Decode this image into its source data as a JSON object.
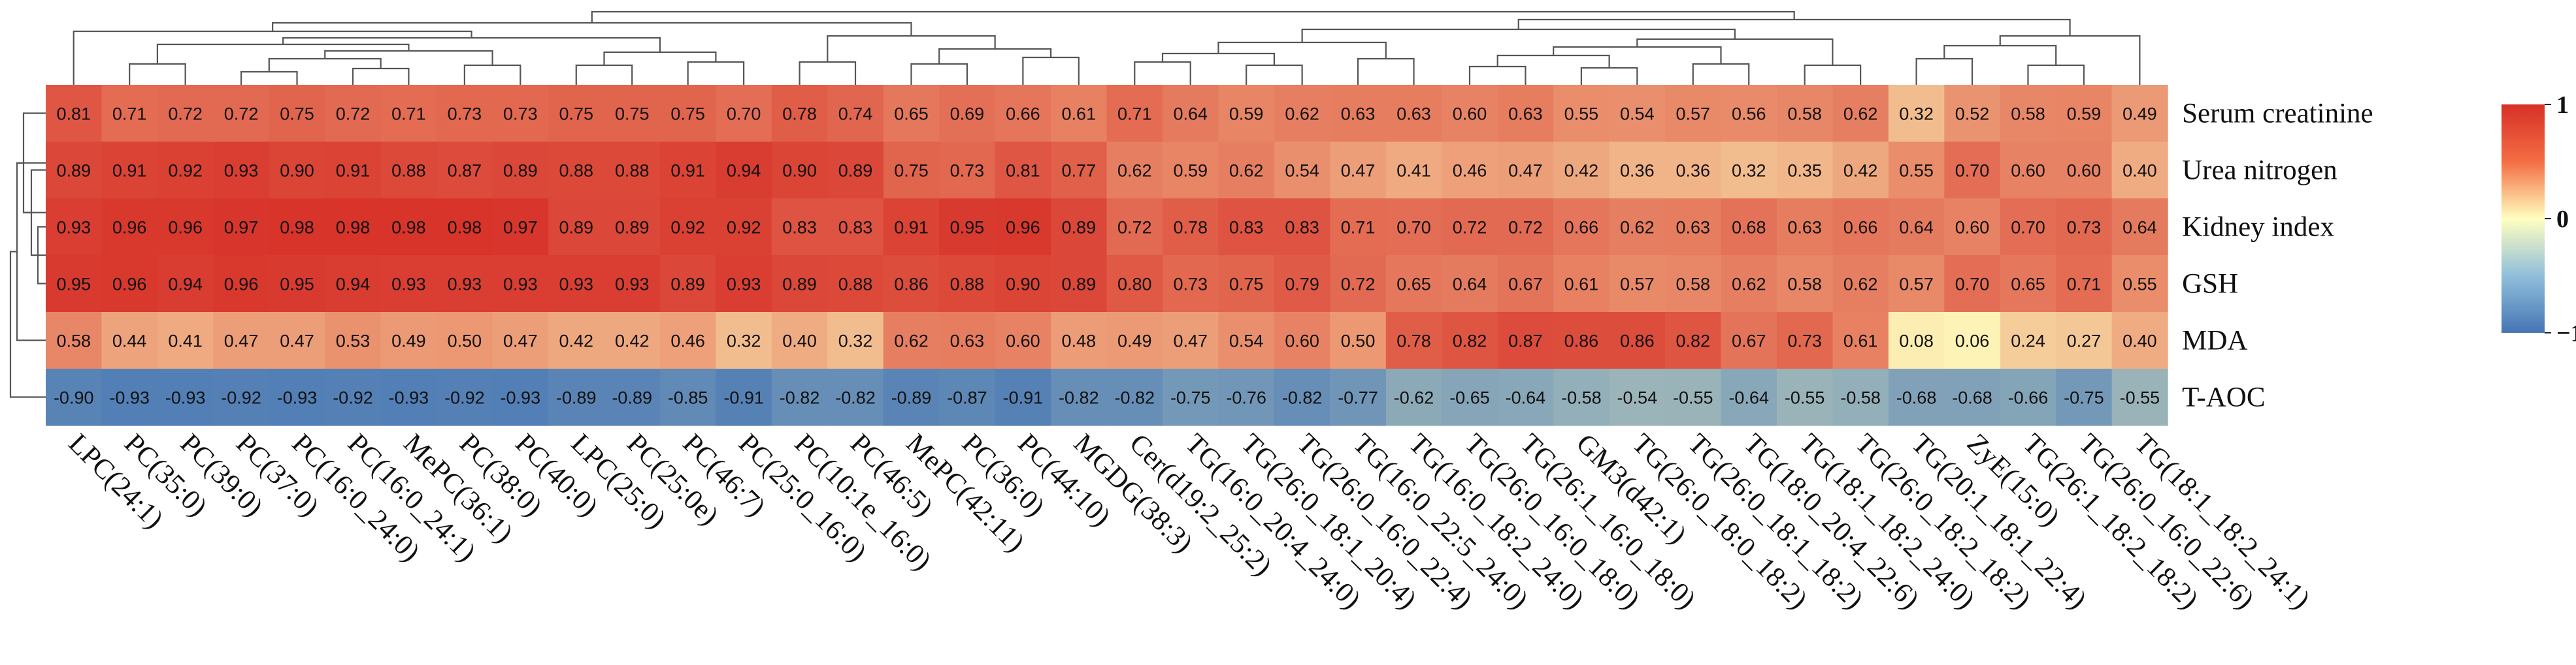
{
  "chart_data": {
    "type": "heatmap",
    "title": "",
    "rows": [
      "Serum creatinine",
      "Urea nitrogen",
      "Kidney index",
      "GSH",
      "MDA",
      "T-AOC"
    ],
    "columns": [
      "LPC(24:1)",
      "PC(35:0)",
      "PC(39:0)",
      "PC(37:0)",
      "PC(16:0_24:0)",
      "PC(16:0_24:1)",
      "MePC(36:1)",
      "PC(38:0)",
      "PC(40:0)",
      "LPC(25:0)",
      "PC(25:0e)",
      "PC(46:7)",
      "PC(25:0_16:0)",
      "PC(10:1e_16:0)",
      "PC(46:5)",
      "MePC(42:11)",
      "PC(36:0)",
      "PC(44:10)",
      "MGDG(38:3)",
      "Cer(d19:2_25:2)",
      "TG(16:0_20:4_24:0)",
      "TG(26:0_18:1_20:4)",
      "TG(26:0_16:0_22:4)",
      "TG(16:0_22:5_24:0)",
      "TG(16:0_18:2_24:0)",
      "TG(26:0_16:0_18:0)",
      "TG(26:1_16:0_18:0)",
      "GM3(d42:1)",
      "TG(26:0_18:0_18:2)",
      "TG(26:0_18:1_18:2)",
      "TG(18:0_20:4_22:6)",
      "TG(18:1_18:2_24:0)",
      "TG(26:0_18:2_18:2)",
      "TG(20:1_18:1_22:4)",
      "ZyE(15:0)",
      "TG(26:1_18:2_18:2)",
      "TG(26:0_16:0_22:6)",
      "TG(18:1_18:2_24:1)"
    ],
    "values": [
      [
        "0.81",
        "0.71",
        "0.72",
        "0.72",
        "0.75",
        "0.72",
        "0.71",
        "0.73",
        "0.73",
        "0.75",
        "0.75",
        "0.75",
        "0.70",
        "0.78",
        "0.74",
        "0.65",
        "0.69",
        "0.66",
        "0.61",
        "0.71",
        "0.64",
        "0.59",
        "0.62",
        "0.63",
        "0.63",
        "0.60",
        "0.63",
        "0.55",
        "0.54",
        "0.57",
        "0.56",
        "0.58",
        "0.62",
        "0.32",
        "0.52",
        "0.58",
        "0.59",
        "0.49"
      ],
      [
        "0.89",
        "0.91",
        "0.92",
        "0.93",
        "0.90",
        "0.91",
        "0.88",
        "0.87",
        "0.89",
        "0.88",
        "0.88",
        "0.91",
        "0.94",
        "0.90",
        "0.89",
        "0.75",
        "0.73",
        "0.81",
        "0.77",
        "0.62",
        "0.59",
        "0.62",
        "0.54",
        "0.47",
        "0.41",
        "0.46",
        "0.47",
        "0.42",
        "0.36",
        "0.36",
        "0.32",
        "0.35",
        "0.42",
        "0.55",
        "0.70",
        "0.60",
        "0.60",
        "0.40"
      ],
      [
        "0.93",
        "0.96",
        "0.96",
        "0.97",
        "0.98",
        "0.98",
        "0.98",
        "0.98",
        "0.97",
        "0.89",
        "0.89",
        "0.92",
        "0.92",
        "0.83",
        "0.83",
        "0.91",
        "0.95",
        "0.96",
        "0.89",
        "0.72",
        "0.78",
        "0.83",
        "0.83",
        "0.71",
        "0.70",
        "0.72",
        "0.72",
        "0.66",
        "0.62",
        "0.63",
        "0.68",
        "0.63",
        "0.66",
        "0.64",
        "0.60",
        "0.70",
        "0.73",
        "0.64"
      ],
      [
        "0.95",
        "0.96",
        "0.94",
        "0.96",
        "0.95",
        "0.94",
        "0.93",
        "0.93",
        "0.93",
        "0.93",
        "0.93",
        "0.89",
        "0.93",
        "0.89",
        "0.88",
        "0.86",
        "0.88",
        "0.90",
        "0.89",
        "0.80",
        "0.73",
        "0.75",
        "0.79",
        "0.72",
        "0.65",
        "0.64",
        "0.67",
        "0.61",
        "0.57",
        "0.58",
        "0.62",
        "0.58",
        "0.62",
        "0.57",
        "0.70",
        "0.65",
        "0.71",
        "0.55"
      ],
      [
        "0.58",
        "0.44",
        "0.41",
        "0.47",
        "0.47",
        "0.53",
        "0.49",
        "0.50",
        "0.47",
        "0.42",
        "0.42",
        "0.46",
        "0.32",
        "0.40",
        "0.32",
        "0.62",
        "0.63",
        "0.60",
        "0.48",
        "0.49",
        "0.47",
        "0.54",
        "0.60",
        "0.50",
        "0.78",
        "0.82",
        "0.87",
        "0.86",
        "0.86",
        "0.82",
        "0.67",
        "0.73",
        "0.61",
        "0.08",
        "0.06",
        "0.24",
        "0.27",
        "0.40"
      ],
      [
        "-0.90",
        "-0.93",
        "-0.93",
        "-0.92",
        "-0.93",
        "-0.92",
        "-0.93",
        "-0.92",
        "-0.93",
        "-0.89",
        "-0.89",
        "-0.85",
        "-0.91",
        "-0.82",
        "-0.82",
        "-0.89",
        "-0.87",
        "-0.91",
        "-0.82",
        "-0.82",
        "-0.75",
        "-0.76",
        "-0.82",
        "-0.77",
        "-0.62",
        "-0.65",
        "-0.64",
        "-0.58",
        "-0.54",
        "-0.55",
        "-0.64",
        "-0.55",
        "-0.58",
        "-0.68",
        "-0.68",
        "-0.66",
        "-0.75",
        "-0.55"
      ]
    ],
    "color_scale": {
      "min": -1,
      "mid": 0,
      "max": 1,
      "low_color": "#4575b4",
      "mid_color": "#ffffbf",
      "high_color": "#d73027",
      "tick_labels": [
        "1",
        "0",
        "−1"
      ],
      "tick_values": [
        1,
        0,
        -1
      ]
    },
    "legend_position": "right",
    "row_dendrogram": true,
    "column_dendrogram": true
  }
}
